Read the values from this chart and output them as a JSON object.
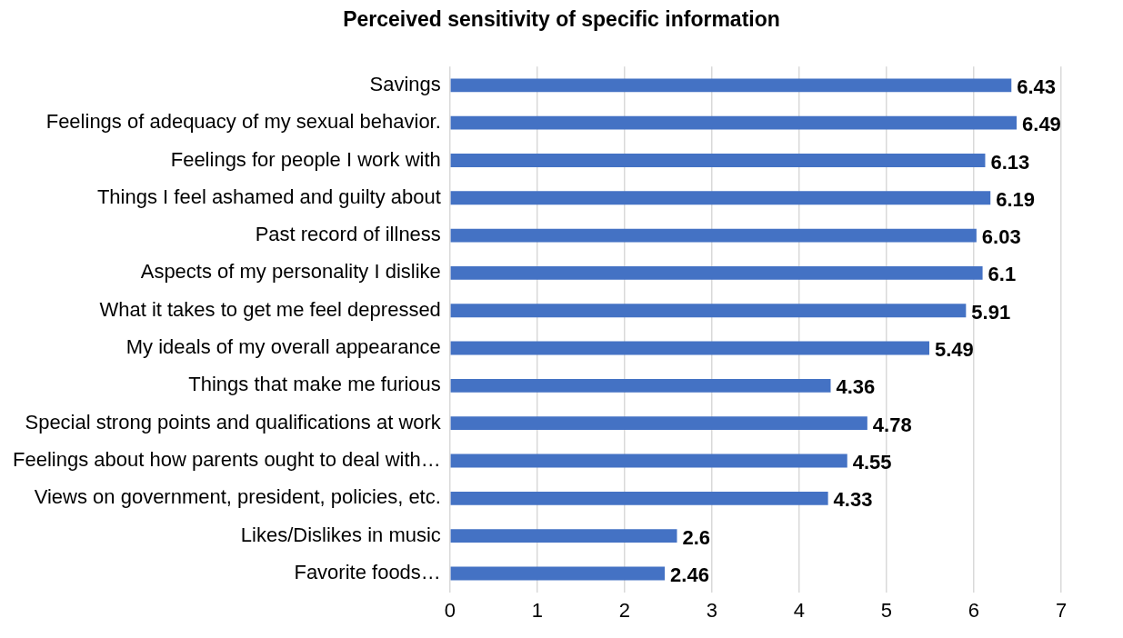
{
  "chart_data": {
    "type": "bar",
    "title": "Perceived sensitivity of specific information",
    "orientation": "horizontal",
    "categories": [
      "Savings",
      "Feelings of adequacy of my sexual behavior.",
      "Feelings for people I work with",
      "Things I feel ashamed and guilty about",
      "Past record of illness",
      "Aspects of my personality I dislike",
      "What it takes to get me feel depressed",
      "My ideals of my overall appearance",
      "Things that make me furious",
      "Special strong points and qualifications at work",
      "Feelings about how parents ought to deal with…",
      "Views on government, president, policies, etc.",
      "Likes/Dislikes in music",
      "Favorite foods…"
    ],
    "values": [
      6.43,
      6.49,
      6.13,
      6.19,
      6.03,
      6.1,
      5.91,
      5.49,
      4.36,
      4.78,
      4.55,
      4.33,
      2.6,
      2.46
    ],
    "color": "#4472c4",
    "xlim": [
      0,
      7
    ],
    "xticks": [
      0,
      1,
      2,
      3,
      4,
      5,
      6,
      7
    ],
    "grid": "x",
    "data_labels": true,
    "legend": false
  }
}
